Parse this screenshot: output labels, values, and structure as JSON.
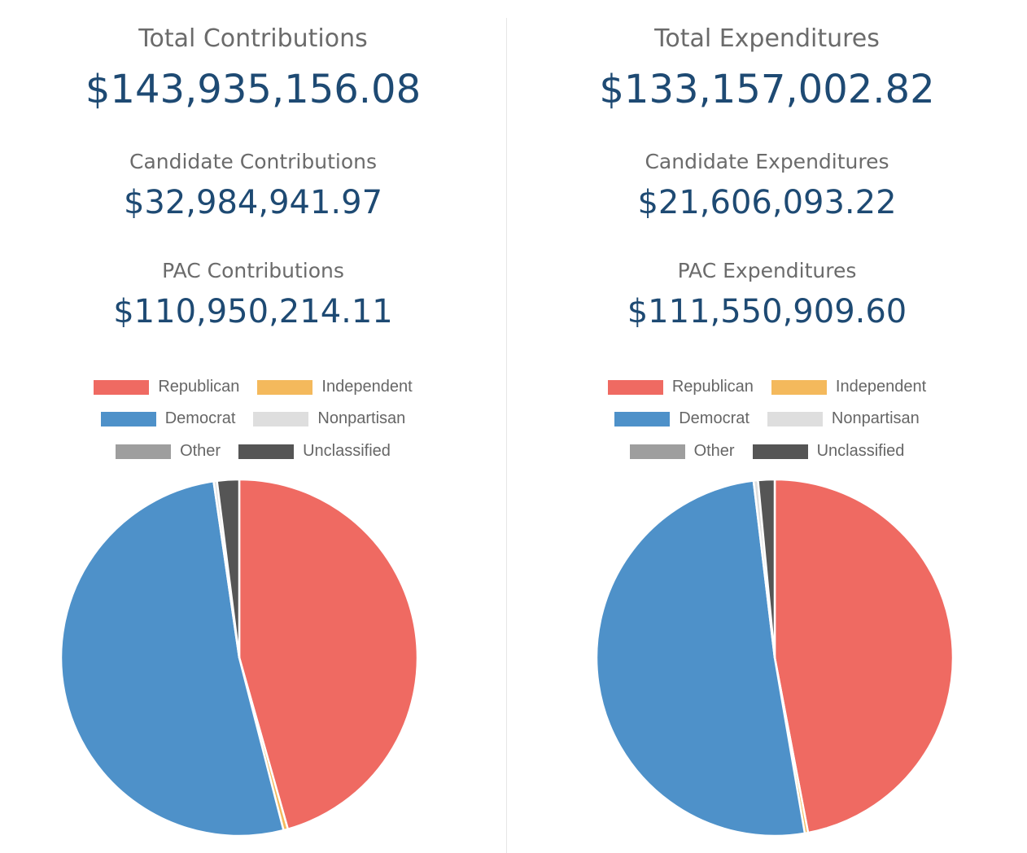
{
  "colors": {
    "republican": "#ef6a62",
    "independent": "#f4b95c",
    "democrat": "#4e91c9",
    "nonpartisan": "#dedede",
    "other": "#9e9e9e",
    "unclassified": "#555555",
    "label": "#6b6b6b",
    "value": "#1e4a73"
  },
  "left": {
    "total_label": "Total Contributions",
    "total_value": "$143,935,156.08",
    "candidate_label": "Candidate Contributions",
    "candidate_value": "$32,984,941.97",
    "pac_label": "PAC Contributions",
    "pac_value": "$110,950,214.11"
  },
  "right": {
    "total_label": "Total Expenditures",
    "total_value": "$133,157,002.82",
    "candidate_label": "Candidate Expenditures",
    "candidate_value": "$21,606,093.22",
    "pac_label": "PAC Expenditures",
    "pac_value": "$111,550,909.60"
  },
  "legend": {
    "republican": "Republican",
    "independent": "Independent",
    "democrat": "Democrat",
    "nonpartisan": "Nonpartisan",
    "other": "Other",
    "unclassified": "Unclassified"
  },
  "chart_data": [
    {
      "type": "pie",
      "legend_position": "top",
      "categories": [
        "Republican",
        "Independent",
        "Democrat",
        "Nonpartisan",
        "Other",
        "Unclassified"
      ],
      "values": [
        45.6,
        0.4,
        51.7,
        0.3,
        0.0,
        2.0
      ]
    },
    {
      "type": "pie",
      "legend_position": "top",
      "categories": [
        "Republican",
        "Independent",
        "Democrat",
        "Nonpartisan",
        "Other",
        "Unclassified"
      ],
      "values": [
        47.0,
        0.3,
        50.8,
        0.4,
        0.0,
        1.5
      ]
    }
  ]
}
